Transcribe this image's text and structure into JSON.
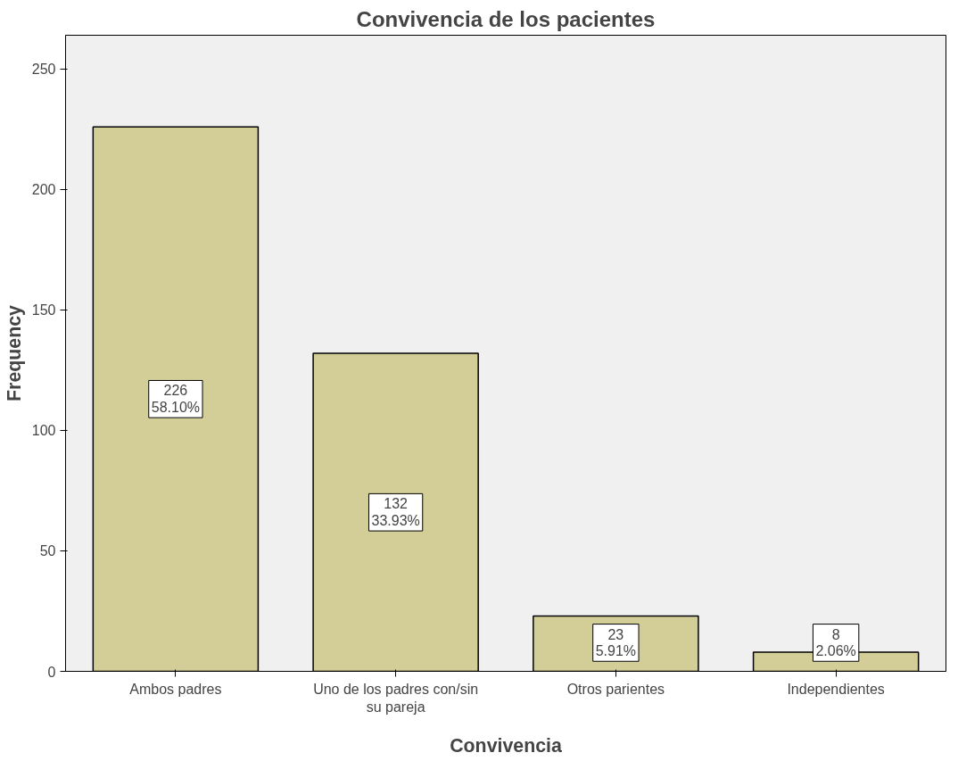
{
  "chart_data": {
    "type": "bar",
    "title": "Convivencia de los pacientes",
    "xlabel": "Convivencia",
    "ylabel": "Frequency",
    "categories": [
      "Ambos padres",
      "Uno de los padres con/sin su pareja",
      "Otros parientes",
      "Independientes"
    ],
    "values": [
      226,
      132,
      23,
      8
    ],
    "value_labels": [
      "226\n58.10%",
      "132\n33.93%",
      "23\n5.91%",
      "8\n2.06%"
    ],
    "color": "#d3ce97",
    "ylim": [
      0,
      264
    ],
    "yticks": [
      0,
      50,
      100,
      150,
      200,
      250
    ],
    "grid": false
  }
}
